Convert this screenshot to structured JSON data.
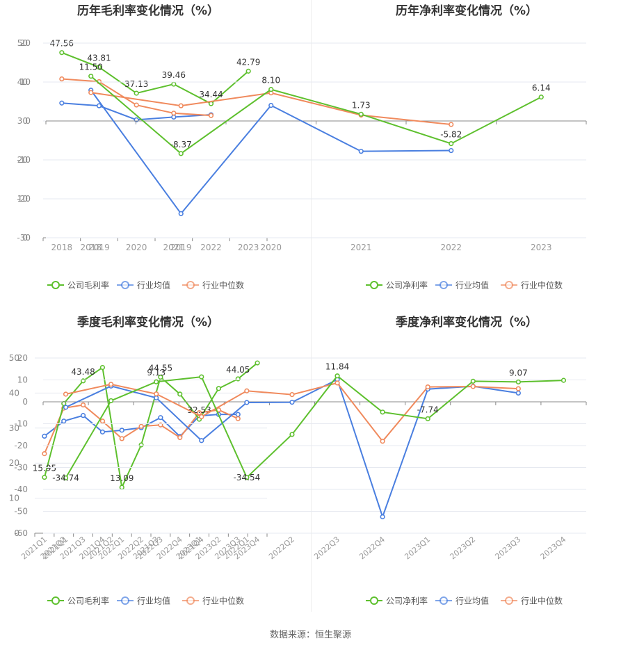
{
  "chart_data": [
    {
      "type": "line",
      "title": "历年毛利率变化情况（%）",
      "categories": [
        "2018",
        "2019",
        "2020",
        "2021",
        "2022",
        "2023"
      ],
      "ylim": [
        0,
        50
      ],
      "yticks": [
        0,
        10,
        20,
        30,
        40,
        50
      ],
      "grid": true,
      "legend": "bottom",
      "series": [
        {
          "name": "公司毛利率",
          "color": "#5ec02e",
          "values": [
            47.56,
            43.81,
            37.13,
            39.46,
            34.44,
            42.79
          ],
          "labels": [
            "47.56",
            "43.81",
            "37.13",
            "39.46",
            "34.44",
            "42.79"
          ]
        },
        {
          "name": "行业均值",
          "color": "#4a7fe0",
          "values": [
            34.6,
            33.9,
            30.3,
            31.0,
            31.6,
            null
          ]
        },
        {
          "name": "行业中位数",
          "color": "#f08a5d",
          "values": [
            40.8,
            40.1,
            34.1,
            32.0,
            31.4,
            null
          ]
        }
      ]
    },
    {
      "type": "line",
      "title": "历年净利率变化情况（%）",
      "categories": [
        "2018",
        "2019",
        "2020",
        "2021",
        "2022",
        "2023"
      ],
      "ylim": [
        -30,
        20
      ],
      "yticks": [
        -30,
        -20,
        -10,
        0,
        10,
        20
      ],
      "grid": true,
      "legend": "bottom",
      "series": [
        {
          "name": "公司净利率",
          "color": "#5ec02e",
          "values": [
            11.5,
            -8.37,
            8.1,
            1.73,
            -5.82,
            6.14
          ],
          "labels": [
            "11.50",
            "-8.37",
            "8.10",
            "1.73",
            "-5.82",
            "6.14"
          ]
        },
        {
          "name": "行业均值",
          "color": "#4a7fe0",
          "values": [
            7.9,
            -23.8,
            4.0,
            -7.8,
            -7.6,
            null
          ]
        },
        {
          "name": "行业中位数",
          "color": "#f08a5d",
          "values": [
            7.3,
            3.9,
            7.2,
            1.5,
            -0.9,
            null
          ]
        }
      ]
    },
    {
      "type": "line",
      "title": "季度毛利率变化情况（%）",
      "categories": [
        "2021Q1",
        "2021Q2",
        "2021Q3",
        "2021Q4",
        "2022Q1",
        "2022Q2",
        "2022Q3",
        "2022Q4",
        "2023Q1",
        "2023Q2",
        "2023Q3",
        "2023Q4"
      ],
      "ylim": [
        0,
        50
      ],
      "yticks": [
        0,
        10,
        20,
        30,
        40,
        50
      ],
      "grid": true,
      "legend": "bottom",
      "series": [
        {
          "name": "公司毛利率",
          "color": "#5ec02e",
          "values": [
            15.95,
            37.0,
            43.48,
            47.3,
            13.09,
            25.2,
            44.55,
            39.7,
            32.53,
            41.3,
            44.05,
            48.6
          ],
          "labels": [
            "15.95",
            "",
            "43.48",
            "",
            "13.09",
            "",
            "44.55",
            "",
            "32.53",
            "",
            "44.05",
            ""
          ]
        },
        {
          "name": "行业均值",
          "color": "#4a7fe0",
          "values": [
            27.7,
            32.0,
            33.6,
            28.9,
            29.4,
            30.1,
            33.0,
            27.6,
            33.5,
            33.9,
            33.9,
            null
          ]
        },
        {
          "name": "行业中位数",
          "color": "#f08a5d",
          "values": [
            22.7,
            35.7,
            36.6,
            32.0,
            27.0,
            30.5,
            30.9,
            27.3,
            34.4,
            35.2,
            32.7,
            null
          ]
        }
      ]
    },
    {
      "type": "line",
      "title": "季度净利率变化情况（%）",
      "categories": [
        "2021Q1",
        "2021Q2",
        "2021Q3",
        "2021Q4",
        "2022Q1",
        "2022Q2",
        "2022Q3",
        "2022Q4",
        "2023Q1",
        "2023Q2",
        "2023Q3",
        "2023Q4"
      ],
      "ylim": [
        -60,
        20
      ],
      "yticks": [
        -60,
        -50,
        -40,
        -30,
        -20,
        -10,
        0,
        10,
        20
      ],
      "grid": true,
      "legend": "bottom",
      "series": [
        {
          "name": "公司净利率",
          "color": "#5ec02e",
          "values": [
            -34.74,
            0.5,
            9.13,
            11.4,
            -34.54,
            -14.9,
            11.84,
            -4.7,
            -7.74,
            9.4,
            9.07,
            9.8
          ],
          "labels": [
            "-34.74",
            "",
            "9.13",
            "",
            "-34.54",
            "",
            "11.84",
            "",
            "-7.74",
            "",
            "9.07",
            ""
          ]
        },
        {
          "name": "行业均值",
          "color": "#4a7fe0",
          "values": [
            -2.5,
            7.2,
            1.8,
            -17.7,
            -0.3,
            -0.2,
            10.2,
            -52.5,
            5.8,
            7.1,
            4.0,
            null
          ]
        },
        {
          "name": "行业中位数",
          "color": "#f08a5d",
          "values": [
            3.5,
            8.0,
            3.6,
            -6.8,
            5.0,
            3.3,
            8.6,
            -18.0,
            6.8,
            7.0,
            6.0,
            null
          ]
        }
      ]
    }
  ],
  "footer": {
    "source": "数据来源：恒生聚源"
  }
}
